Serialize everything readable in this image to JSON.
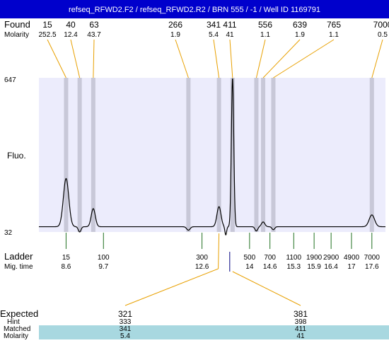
{
  "header": {
    "title": "refseq_RFWD2.F2 / refseq_RFWD2.R2 / BRN 555 / -1 / Well ID 1169791",
    "bg_color": "#0000cc",
    "text_color": "#ffffff"
  },
  "labels": {
    "found": "Found",
    "molarity": "Molarity",
    "fluo": "Fluo.",
    "ladder": "Ladder",
    "mig_time": "Mig. time",
    "expected": "Expected",
    "hint": "Hint",
    "matched": "Matched",
    "molarity_row": "Molarity"
  },
  "found_peaks": [
    {
      "size": "15",
      "molarity": "252.5"
    },
    {
      "size": "40",
      "molarity": "12.4"
    },
    {
      "size": "63",
      "molarity": "43.7"
    },
    {
      "size": "266",
      "molarity": "1.9"
    },
    {
      "size": "341",
      "molarity": "5.4"
    },
    {
      "size": "411",
      "molarity": "41"
    },
    {
      "size": "556",
      "molarity": "1.1"
    },
    {
      "size": "639",
      "molarity": "1.9"
    },
    {
      "size": "765",
      "molarity": "1.1"
    },
    {
      "size": "7000",
      "molarity": "0.5"
    }
  ],
  "ladder": [
    {
      "size": "15",
      "time": "8.6"
    },
    {
      "size": "100",
      "time": "9.7"
    },
    {
      "size": "300",
      "time": "12.6"
    },
    {
      "size": "500",
      "time": "14"
    },
    {
      "size": "700",
      "time": "14.6"
    },
    {
      "size": "1100",
      "time": "15.3"
    },
    {
      "size": "1900",
      "time": "15.9"
    },
    {
      "size": "2900",
      "time": "16.4"
    },
    {
      "size": "4900",
      "time": "17"
    },
    {
      "size": "7000",
      "time": "17.6"
    }
  ],
  "expected": [
    {
      "expected": "321",
      "hint": "333",
      "matched": "341",
      "molarity": "5.4"
    },
    {
      "expected": "381",
      "hint": "398",
      "matched": "411",
      "molarity": "41"
    }
  ],
  "colors": {
    "plot_bg": "#ececfc",
    "band": "#c8c8d8",
    "trace": "#000000",
    "connector": "#e8a000",
    "ladder_tick": "#207020",
    "highlight_row": "#a8d8e0",
    "marker_411": "#000080"
  },
  "chart_data": {
    "type": "line",
    "title": "refseq_RFWD2.F2 / refseq_RFWD2.R2 / BRN 555 / -1 / Well ID 1169791",
    "ylabel": "Fluo.",
    "ylim": [
      32,
      647
    ],
    "yticks": [
      32,
      647
    ],
    "x_unit": "migration time (s)",
    "xlim": [
      7.8,
      18.0
    ],
    "baseline": 53,
    "peaks": [
      {
        "bp": 15,
        "time": 8.6,
        "height": 245
      },
      {
        "bp": 40,
        "time": 9.0,
        "height": 32
      },
      {
        "bp": 63,
        "time": 9.4,
        "height": 125
      },
      {
        "bp": 266,
        "time": 12.2,
        "height": 39
      },
      {
        "bp": 341,
        "time": 13.1,
        "height": 133
      },
      {
        "bp": 411,
        "time": 13.5,
        "height": 647
      },
      {
        "bp": 556,
        "time": 14.2,
        "height": 36
      },
      {
        "bp": 639,
        "time": 14.4,
        "height": 72
      },
      {
        "bp": 765,
        "time": 14.7,
        "height": 41
      },
      {
        "bp": 7000,
        "time": 17.6,
        "height": 100
      }
    ],
    "dip": {
      "time": 13.3,
      "value": 20
    }
  }
}
